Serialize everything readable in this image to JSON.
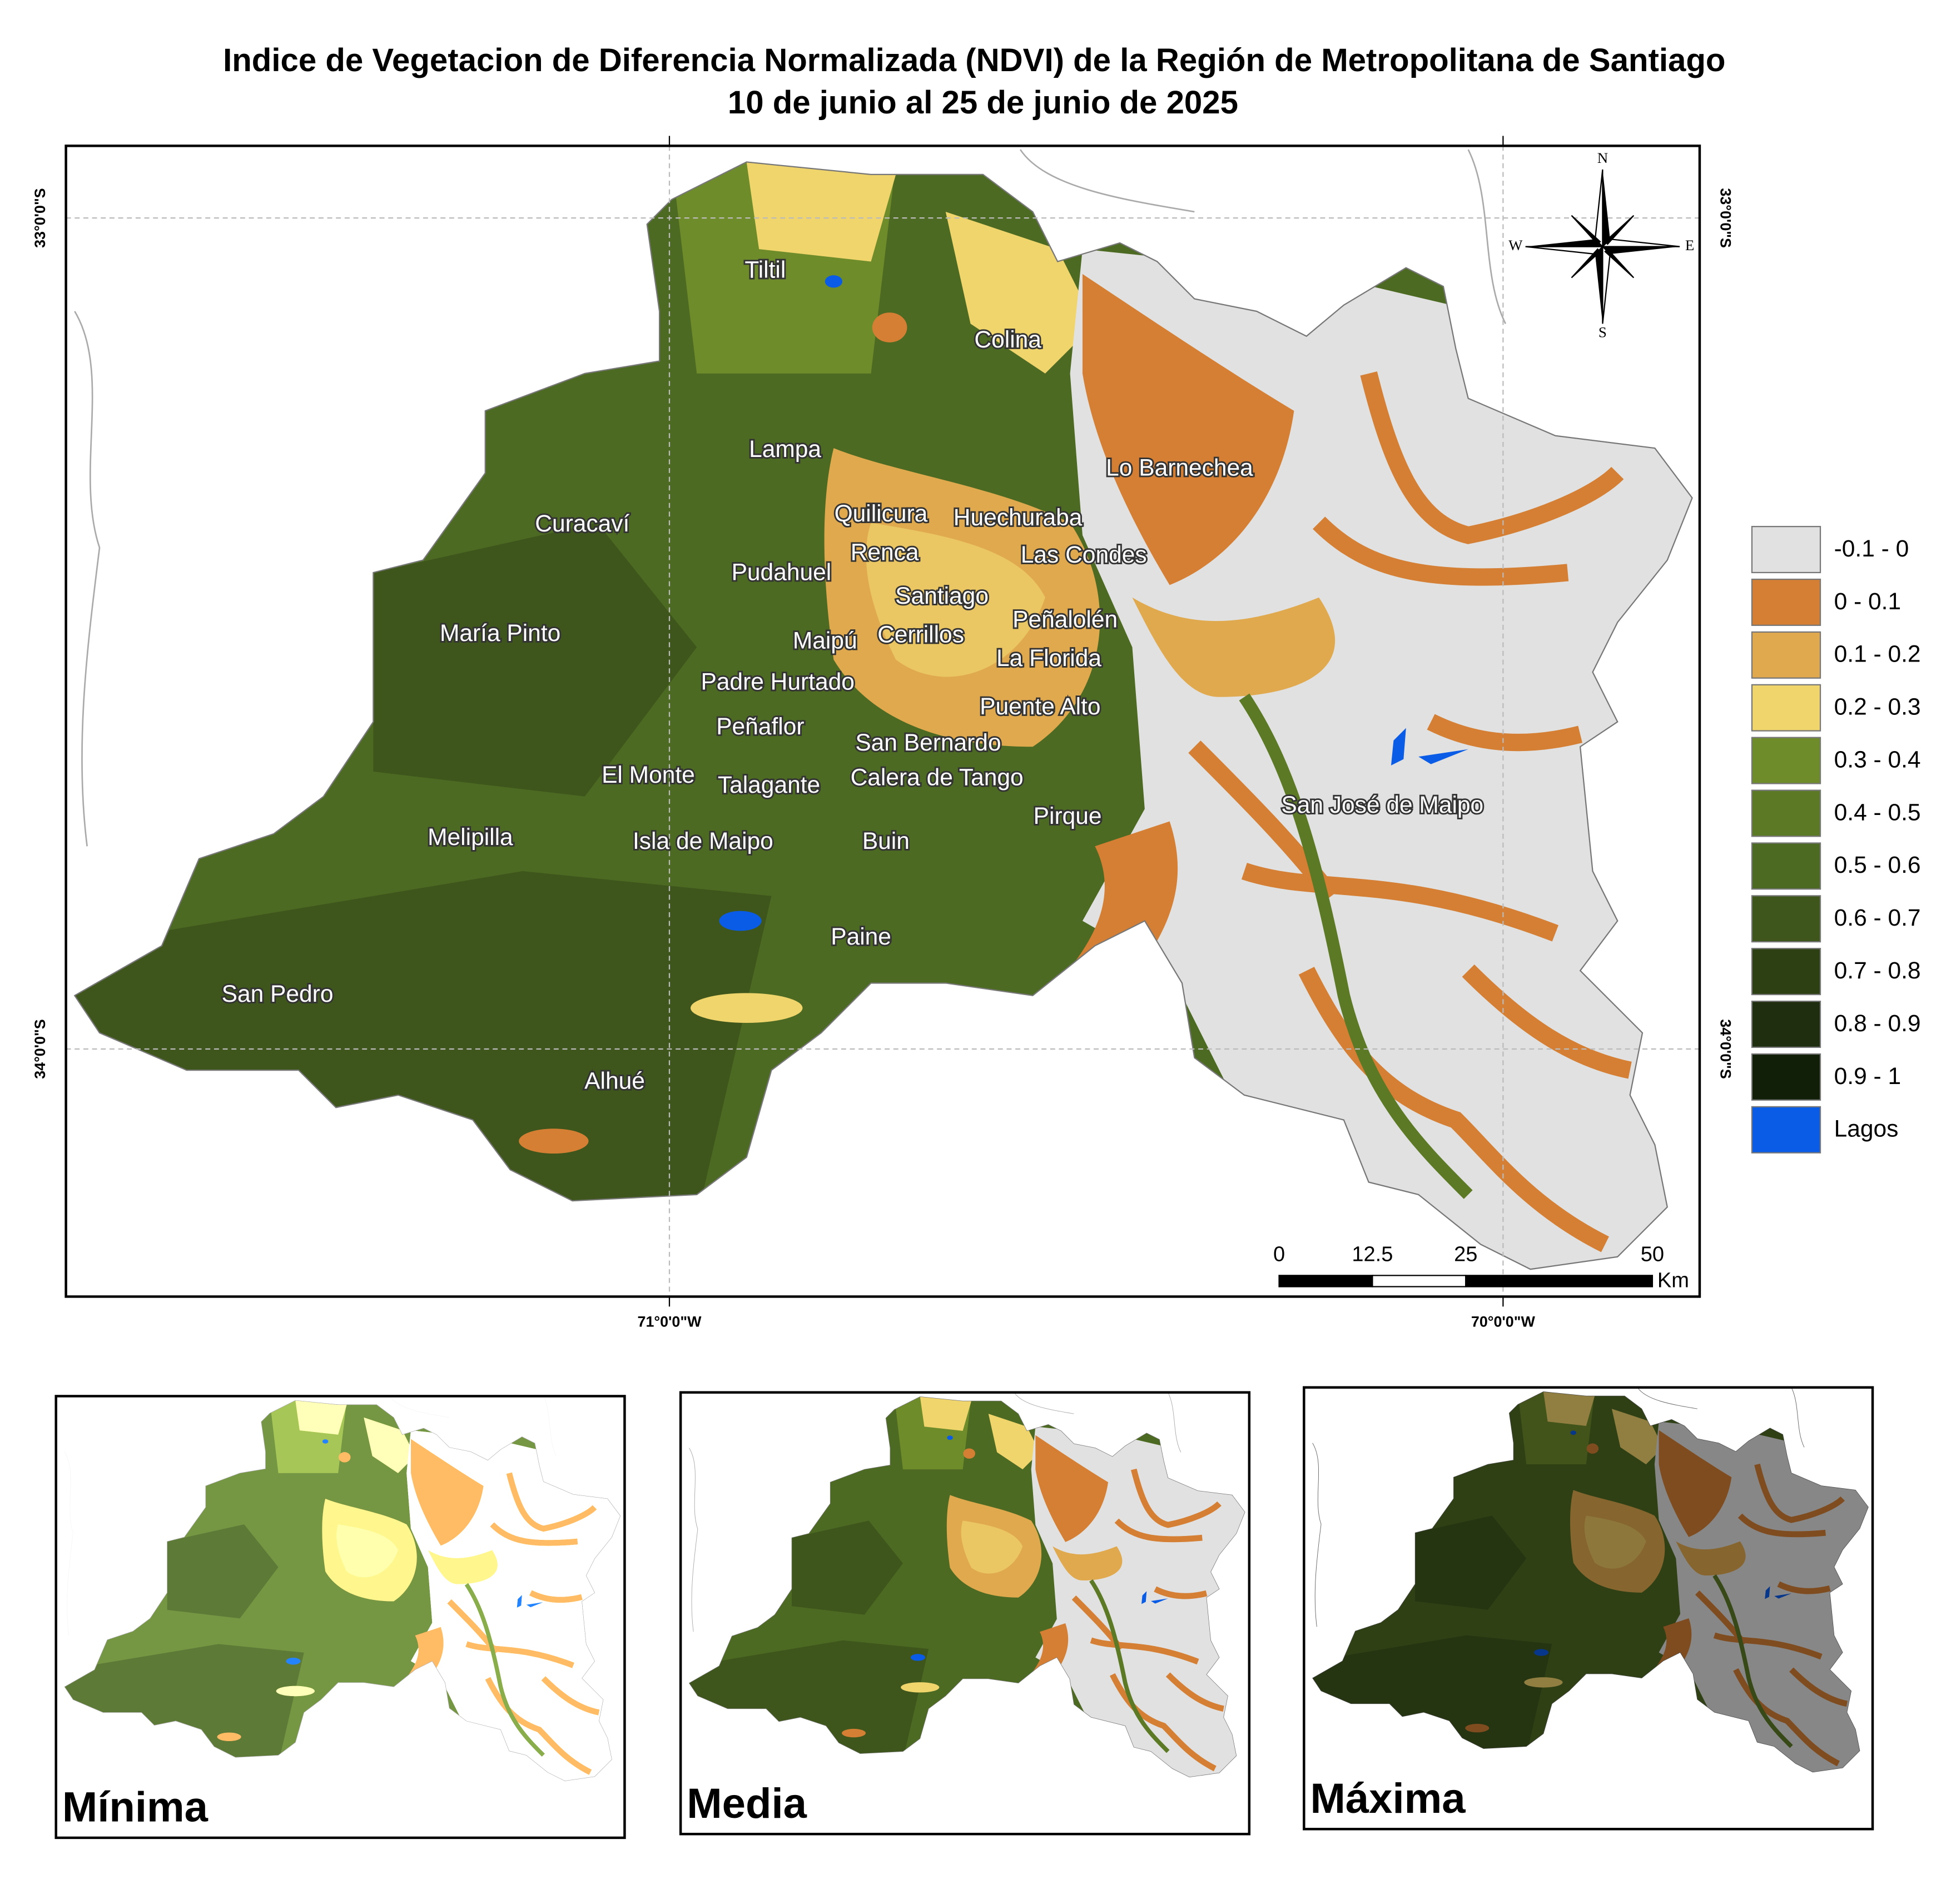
{
  "title": "Indice de Vegetacion de Diferencia Normalizada (NDVI) de la Región de Metropolitana de Santiago",
  "subtitle": "10 de junio al 25 de junio de 2025",
  "places": [
    "Tiltil",
    "Colina",
    "Lampa",
    "Lo Barnechea",
    "Curacaví",
    "Quilicura",
    "Huechuraba",
    "Renca",
    "Las Condes",
    "Pudahuel",
    "Santiago",
    "María Pinto",
    "Peñalolén",
    "Maipú",
    "Cerrillos",
    "La Florida",
    "Padre Hurtado",
    "Puente Alto",
    "Peñaflor",
    "San Bernardo",
    "El Monte",
    "Talagante",
    "Calera de Tango",
    "San José de Maipo",
    "Pirque",
    "Melipilla",
    "Isla de Maipo",
    "Buin",
    "Paine",
    "San Pedro",
    "Alhué"
  ],
  "graticule": {
    "lat": [
      "33°0'0\"S",
      "34°0'0\"S"
    ],
    "lon": [
      "71°0'0\"W",
      "70°0'0\"W"
    ]
  },
  "compass": {
    "north": "N",
    "east": "E",
    "south": "S",
    "west": "W"
  },
  "scale_bar": {
    "ticks": [
      0,
      12.5,
      25,
      50
    ],
    "unit": "Km"
  },
  "legend": [
    {
      "label": "-0.1 - 0",
      "color": "#e1e1e1"
    },
    {
      "label": "0 - 0.1",
      "color": "#d47f33"
    },
    {
      "label": "0.1 - 0.2",
      "color": "#e0a94e"
    },
    {
      "label": "0.2 - 0.3",
      "color": "#f0d46c"
    },
    {
      "label": "0.3 - 0.4",
      "color": "#6f8c2b"
    },
    {
      "label": "0.4 - 0.5",
      "color": "#5c7a25"
    },
    {
      "label": "0.5 - 0.6",
      "color": "#4d6a22"
    },
    {
      "label": "0.6 - 0.7",
      "color": "#3e561c"
    },
    {
      "label": "0.7 - 0.8",
      "color": "#2d4014"
    },
    {
      "label": "0.8 - 0.9",
      "color": "#1e2e0e"
    },
    {
      "label": "0.9 - 1",
      "color": "#111e08"
    },
    {
      "label": "Lagos",
      "color": "#0a5ce6"
    }
  ],
  "insets": [
    "Mínima",
    "Media",
    "Máxima"
  ]
}
